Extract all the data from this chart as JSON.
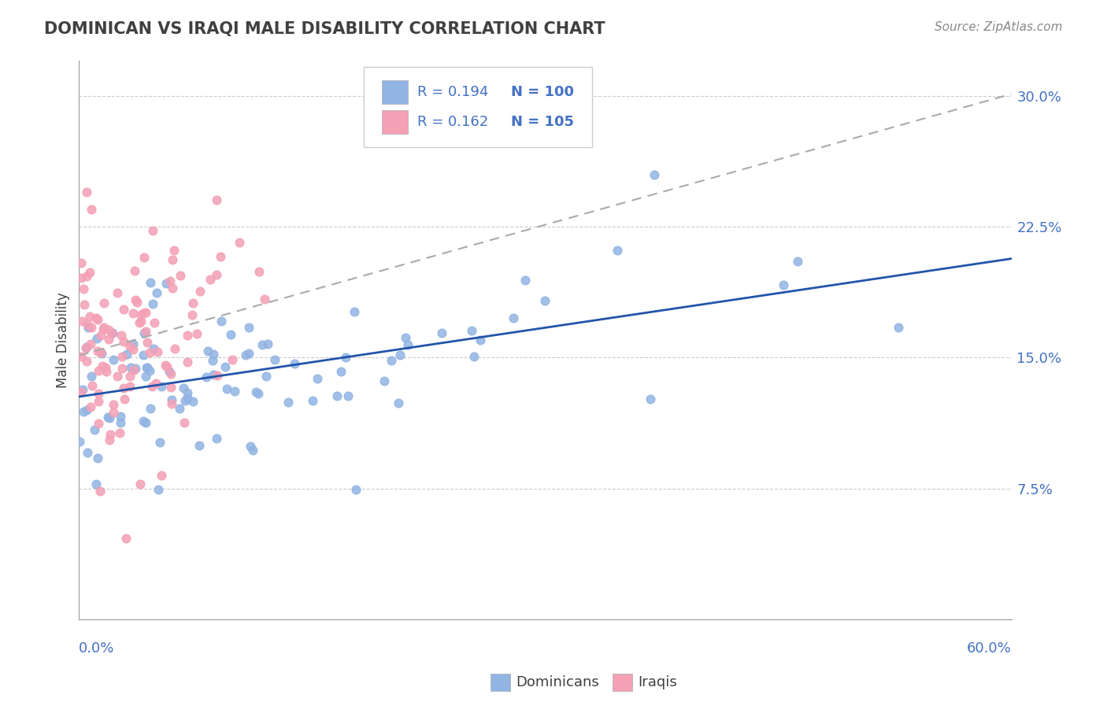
{
  "title": "DOMINICAN VS IRAQI MALE DISABILITY CORRELATION CHART",
  "source": "Source: ZipAtlas.com",
  "ylabel": "Male Disability",
  "xlim": [
    0.0,
    0.6
  ],
  "ylim": [
    0.0,
    0.32
  ],
  "legend_R_blue": "R = 0.194",
  "legend_N_blue": "N = 100",
  "legend_R_pink": "R = 0.162",
  "legend_N_pink": "N = 105",
  "color_blue": "#92b4e3",
  "color_pink": "#f4a0b5",
  "color_blue_text": "#4472c4",
  "color_pink_text": "#e06080",
  "color_title": "#404040",
  "color_source": "#888888",
  "color_trendline_blue": "#2255aa",
  "color_trendline_gray": "#aaaaaa",
  "ytick_vals": [
    0.075,
    0.15,
    0.225,
    0.3
  ],
  "ytick_labs": [
    "7.5%",
    "15.0%",
    "22.5%",
    "30.0%"
  ]
}
